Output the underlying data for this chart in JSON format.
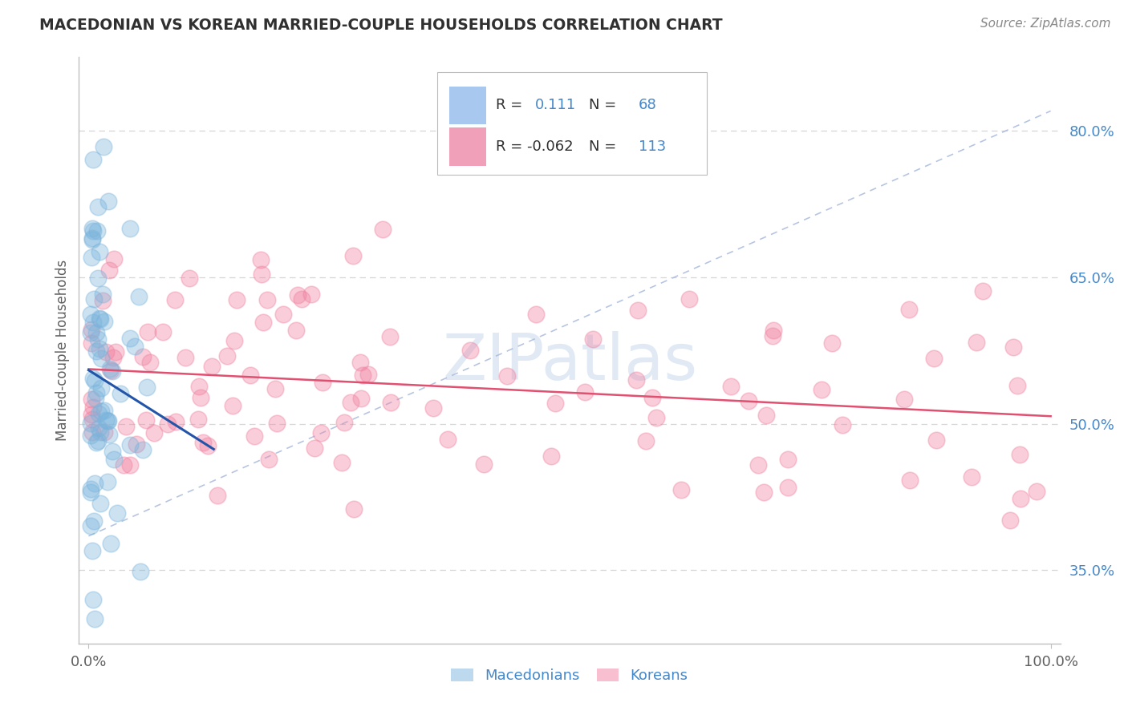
{
  "title": "MACEDONIAN VS KOREAN MARRIED-COUPLE HOUSEHOLDS CORRELATION CHART",
  "source_text": "Source: ZipAtlas.com",
  "ylabel": "Married-couple Households",
  "macedonian_color": "#7ab4dc",
  "korean_color": "#f080a0",
  "macedonian_line_color": "#2255aa",
  "korean_line_color": "#e05070",
  "ref_line_color": "#aabbdd",
  "background_color": "#ffffff",
  "grid_color": "#cccccc",
  "title_color": "#303030",
  "source_color": "#888888",
  "watermark_color": "#c8d8ec",
  "ytick_values": [
    0.35,
    0.5,
    0.65,
    0.8
  ],
  "ytick_labels": [
    "35.0%",
    "50.0%",
    "65.0%",
    "80.0%"
  ],
  "ymin": 0.275,
  "ymax": 0.875,
  "xmin": -0.01,
  "xmax": 1.01
}
